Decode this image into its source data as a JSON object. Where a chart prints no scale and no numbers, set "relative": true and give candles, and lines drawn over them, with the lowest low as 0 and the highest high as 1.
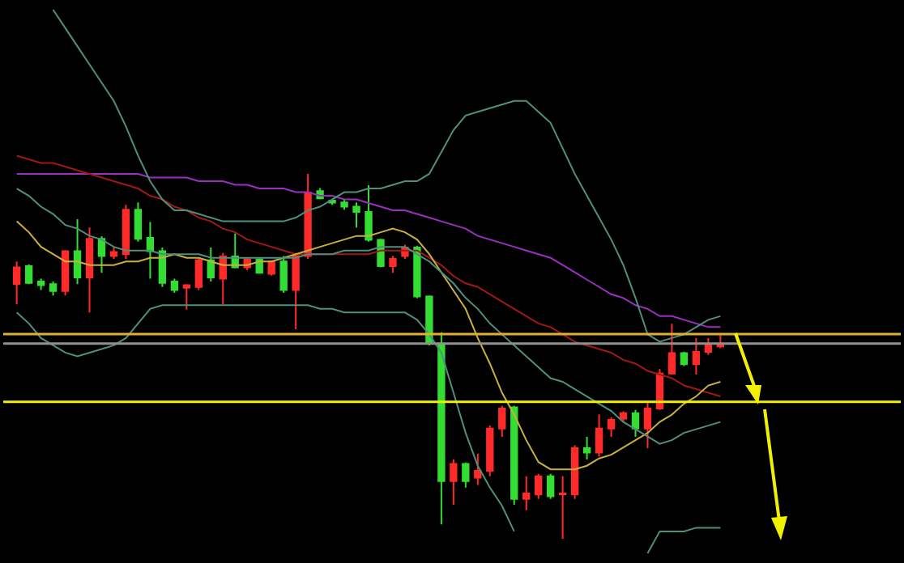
{
  "chart_data": {
    "type": "candlestick",
    "relative": true,
    "grid": false,
    "categories": [
      null,
      null,
      null,
      null,
      null,
      null,
      null,
      null,
      null,
      null,
      null,
      null,
      null,
      null,
      null,
      null,
      null,
      null,
      null,
      null,
      null,
      null,
      null,
      null,
      null,
      null,
      null,
      null,
      null,
      null,
      null,
      null,
      null,
      null,
      null,
      null,
      null,
      null,
      null,
      null,
      null,
      null,
      null,
      null,
      null,
      null,
      null,
      null,
      null,
      null,
      null,
      null,
      null,
      null,
      null,
      null,
      null,
      null,
      null
    ],
    "ohlc": [
      [
        0.698,
        0.76,
        0.643,
        0.744
      ],
      [
        0.747,
        0.752,
        0.698,
        0.701
      ],
      [
        0.705,
        0.713,
        0.682,
        0.695
      ],
      [
        0.698,
        0.705,
        0.667,
        0.679
      ],
      [
        0.679,
        0.791,
        0.667,
        0.788
      ],
      [
        0.788,
        0.876,
        0.698,
        0.716
      ],
      [
        0.716,
        0.853,
        0.62,
        0.822
      ],
      [
        0.822,
        0.829,
        0.729,
        0.775
      ],
      [
        0.775,
        0.798,
        0.767,
        0.786
      ],
      [
        0.78,
        0.915,
        0.767,
        0.902
      ],
      [
        0.902,
        0.922,
        0.814,
        0.822
      ],
      [
        0.825,
        0.868,
        0.713,
        0.788
      ],
      [
        0.788,
        0.798,
        0.69,
        0.701
      ],
      [
        0.705,
        0.713,
        0.674,
        0.682
      ],
      [
        0.688,
        0.698,
        0.628,
        0.695
      ],
      [
        0.69,
        0.767,
        0.682,
        0.763
      ],
      [
        0.763,
        0.798,
        0.705,
        0.716
      ],
      [
        0.713,
        0.783,
        0.643,
        0.774
      ],
      [
        0.774,
        0.837,
        0.741,
        0.744
      ],
      [
        0.744,
        0.769,
        0.736,
        0.766
      ],
      [
        0.766,
        0.769,
        0.726,
        0.729
      ],
      [
        0.726,
        0.763,
        0.721,
        0.76
      ],
      [
        0.76,
        0.775,
        0.674,
        0.682
      ],
      [
        0.682,
        0.783,
        0.574,
        0.775
      ],
      [
        0.775,
        1,
        0.767,
        0.949
      ],
      [
        0.953,
        0.961,
        0.93,
        0.933
      ],
      [
        0.927,
        0.93,
        0.915,
        0.921
      ],
      [
        0.922,
        0.93,
        0.902,
        0.91
      ],
      [
        0.91,
        0.922,
        0.853,
        0.896
      ],
      [
        0.896,
        0.969,
        0.814,
        0.819
      ],
      [
        0.819,
        0.822,
        0.744,
        0.747
      ],
      [
        0.747,
        0.775,
        0.729,
        0.767
      ],
      [
        0.775,
        0.806,
        0.767,
        0.798
      ],
      [
        0.798,
        0.803,
        0.659,
        0.664
      ],
      [
        0.664,
        0.667,
        0.53,
        0.535
      ],
      [
        0.535,
        0.566,
        0.039,
        0.158
      ],
      [
        0.158,
        0.217,
        0.093,
        0.205
      ],
      [
        0.205,
        0.209,
        0.14,
        0.158
      ],
      [
        0.167,
        0.233,
        0.147,
        0.186
      ],
      [
        0.186,
        0.31,
        0.171,
        0.302
      ],
      [
        0.302,
        0.364,
        0.279,
        0.357
      ],
      [
        0.36,
        0.364,
        0.093,
        0.109
      ],
      [
        0.109,
        0.171,
        0.078,
        0.124
      ],
      [
        0.121,
        0.178,
        0.109,
        0.171
      ],
      [
        0.171,
        0.178,
        0.109,
        0.116
      ],
      [
        0.121,
        0.171,
        0,
        0.124
      ],
      [
        0.121,
        0.256,
        0.109,
        0.248
      ],
      [
        0.248,
        0.279,
        0.217,
        0.236
      ],
      [
        0.236,
        0.341,
        0.225,
        0.302
      ],
      [
        0.302,
        0.333,
        0.279,
        0.326
      ],
      [
        0.329,
        0.349,
        0.322,
        0.344
      ],
      [
        0.344,
        0.353,
        0.279,
        0.302
      ],
      [
        0.302,
        0.372,
        0.248,
        0.357
      ],
      [
        0.357,
        0.465,
        0.353,
        0.453
      ],
      [
        0.453,
        0.589,
        0.45,
        0.509
      ],
      [
        0.509,
        0.512,
        0.473,
        0.478
      ],
      [
        0.478,
        0.55,
        0.45,
        0.512
      ],
      [
        0.512,
        0.55,
        0.504,
        0.532
      ],
      [
        0.527,
        0.558,
        0.522,
        0.535
      ]
    ],
    "series": [
      {
        "type": "line",
        "color": "#9b30c0",
        "values": [
          1.0,
          1.0,
          1.0,
          1.0,
          1.0,
          1.0,
          1.0,
          1.0,
          1.0,
          1.0,
          1.0,
          0.99,
          0.99,
          0.99,
          0.99,
          0.98,
          0.98,
          0.98,
          0.97,
          0.97,
          0.96,
          0.96,
          0.96,
          0.95,
          0.95,
          0.94,
          0.94,
          0.93,
          0.93,
          0.92,
          0.91,
          0.9,
          0.9,
          0.89,
          0.88,
          0.87,
          0.86,
          0.85,
          0.83,
          0.82,
          0.81,
          0.8,
          0.79,
          0.78,
          0.77,
          0.75,
          0.73,
          0.71,
          0.69,
          0.67,
          0.66,
          0.64,
          0.63,
          0.61,
          0.61,
          0.6,
          0.59,
          0.58,
          0.58
        ]
      },
      {
        "type": "line",
        "color": "#a01818",
        "values": [
          1.05,
          1.04,
          1.03,
          1.03,
          1.02,
          1.01,
          1.0,
          0.99,
          0.98,
          0.97,
          0.96,
          0.94,
          0.93,
          0.91,
          0.9,
          0.88,
          0.87,
          0.85,
          0.84,
          0.82,
          0.81,
          0.8,
          0.79,
          0.78,
          0.78,
          0.78,
          0.78,
          0.78,
          0.78,
          0.78,
          0.79,
          0.79,
          0.79,
          0.79,
          0.77,
          0.75,
          0.72,
          0.7,
          0.69,
          0.67,
          0.65,
          0.63,
          0.61,
          0.59,
          0.58,
          0.56,
          0.54,
          0.53,
          0.52,
          0.51,
          0.49,
          0.48,
          0.46,
          0.45,
          0.44,
          0.42,
          0.41,
          0.4,
          0.39
        ]
      },
      {
        "type": "line",
        "color": "#c8b040",
        "values": [
          0.87,
          0.84,
          0.8,
          0.78,
          0.76,
          0.76,
          0.75,
          0.75,
          0.75,
          0.76,
          0.76,
          0.77,
          0.77,
          0.78,
          0.77,
          0.77,
          0.76,
          0.75,
          0.75,
          0.75,
          0.76,
          0.76,
          0.77,
          0.78,
          0.79,
          0.8,
          0.81,
          0.82,
          0.83,
          0.83,
          0.84,
          0.85,
          0.84,
          0.82,
          0.78,
          0.73,
          0.68,
          0.63,
          0.55,
          0.48,
          0.4,
          0.34,
          0.27,
          0.21,
          0.19,
          0.19,
          0.19,
          0.2,
          0.22,
          0.23,
          0.25,
          0.27,
          0.29,
          0.32,
          0.34,
          0.37,
          0.39,
          0.42,
          0.43
        ]
      },
      {
        "type": "line",
        "color": "#4f8f7f",
        "values": [
          null,
          null,
          null,
          1.45,
          1.4,
          1.35,
          1.3,
          1.25,
          1.2,
          1.13,
          1.05,
          0.98,
          0.93,
          0.9,
          0.9,
          0.89,
          0.88,
          0.87,
          0.87,
          0.87,
          0.87,
          0.87,
          0.87,
          0.88,
          0.9,
          0.91,
          0.93,
          0.95,
          0.95,
          0.96,
          0.96,
          0.97,
          0.98,
          0.98,
          1.0,
          1.06,
          1.12,
          1.16,
          1.17,
          1.18,
          1.19,
          1.2,
          1.2,
          1.17,
          1.14,
          1.07,
          1.0,
          0.94,
          0.88,
          0.82,
          0.75,
          0.66,
          0.56,
          0.54,
          0.55,
          0.56,
          0.58,
          0.6,
          0.61
        ]
      },
      {
        "type": "line",
        "color": "#4f8f7f",
        "values": [
          0.96,
          0.94,
          0.91,
          0.89,
          0.86,
          0.85,
          0.83,
          0.82,
          0.8,
          0.79,
          0.79,
          0.79,
          0.78,
          0.78,
          0.78,
          0.78,
          0.77,
          0.77,
          0.77,
          0.77,
          0.77,
          0.77,
          0.77,
          0.77,
          0.78,
          0.78,
          0.78,
          0.79,
          0.79,
          0.79,
          0.8,
          0.8,
          0.8,
          0.78,
          0.76,
          0.73,
          0.7,
          0.66,
          0.63,
          0.59,
          0.56,
          0.53,
          0.5,
          0.47,
          0.44,
          0.43,
          0.41,
          0.39,
          0.37,
          0.35,
          0.32,
          0.3,
          0.28,
          0.26,
          0.27,
          0.29,
          0.3,
          0.31,
          0.32
        ]
      },
      {
        "type": "line",
        "color": "#4f8f7f",
        "values": [
          0.62,
          0.59,
          0.55,
          0.53,
          0.51,
          0.5,
          0.51,
          0.52,
          0.53,
          0.55,
          0.59,
          0.63,
          0.64,
          0.64,
          0.64,
          0.64,
          0.64,
          0.64,
          0.64,
          0.64,
          0.64,
          0.64,
          0.64,
          0.64,
          0.64,
          0.63,
          0.63,
          0.62,
          0.62,
          0.62,
          0.62,
          0.62,
          0.62,
          0.6,
          0.56,
          0.51,
          0.4,
          0.29,
          0.2,
          0.14,
          0.09,
          0.02,
          null,
          null,
          null,
          null,
          null,
          null,
          null,
          null,
          null,
          null,
          -0.04,
          0.02,
          0.02,
          0.02,
          0.03,
          0.03,
          0.03
        ]
      }
    ],
    "ref_lines": [
      {
        "axis": "y",
        "value": 0.561,
        "color": "#e0b030"
      },
      {
        "axis": "y",
        "value": 0.535,
        "color": "#909090"
      },
      {
        "axis": "y",
        "value": 0.375,
        "color": "#f0f000"
      }
    ]
  }
}
